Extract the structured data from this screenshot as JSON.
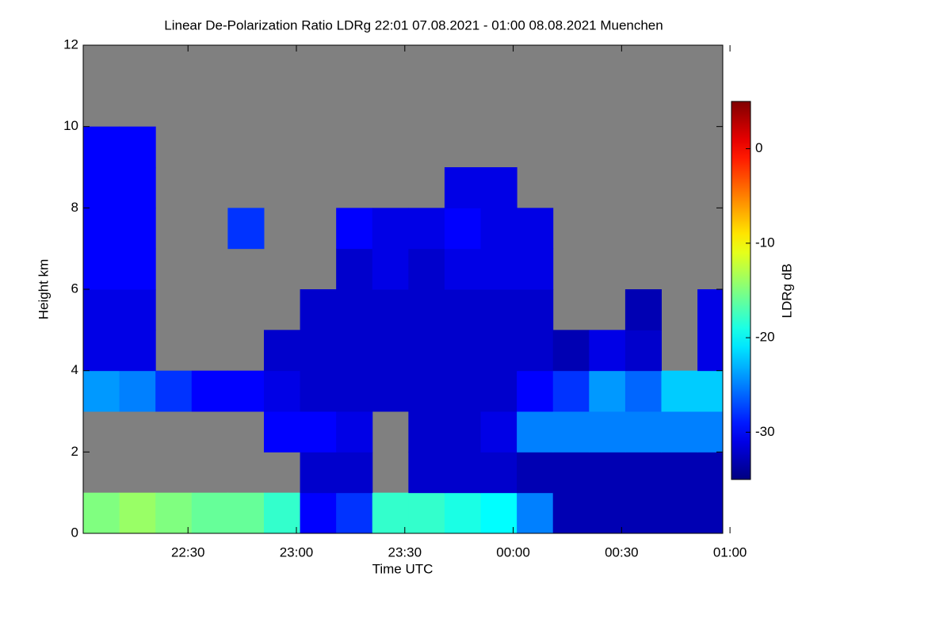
{
  "chart_data": {
    "type": "heatmap",
    "title": "Linear De-Polarization Ratio LDRg   22:01 07.08.2021 - 01:00 08.08.2021 Muenchen",
    "xlabel": "Time UTC",
    "ylabel": "Height km",
    "colorbar_label": "LDRg dB",
    "xlim": [
      1,
      178
    ],
    "ylim": [
      0,
      12
    ],
    "xticks": [
      {
        "value": 30,
        "label": "22:30"
      },
      {
        "value": 60,
        "label": "23:00"
      },
      {
        "value": 90,
        "label": "23:30"
      },
      {
        "value": 120,
        "label": "00:00"
      },
      {
        "value": 150,
        "label": "00:30"
      },
      {
        "value": 180,
        "label": "01:00"
      }
    ],
    "yticks": [
      0,
      2,
      4,
      6,
      8,
      10,
      12
    ],
    "clim": [
      -35,
      5
    ],
    "cticks": [
      0,
      -10,
      -20,
      -30
    ],
    "nan_color": "#808080",
    "colormap": "jet",
    "xbins": [
      1,
      11,
      21,
      31,
      41,
      51,
      61,
      71,
      81,
      91,
      101,
      111,
      121,
      131,
      141,
      151,
      161,
      171,
      178
    ],
    "ybins": [
      0,
      1,
      2,
      3,
      4,
      5,
      6,
      7,
      8,
      9,
      10,
      11,
      12
    ],
    "values": [
      [
        -15,
        -14,
        -15,
        -16,
        -16,
        -18,
        -30,
        -28,
        -18,
        -18,
        -19,
        -20,
        -25,
        -33,
        -33,
        -33,
        -33,
        -33
      ],
      [
        null,
        null,
        null,
        null,
        null,
        null,
        -32,
        -32,
        null,
        -32,
        -32,
        -32,
        -33,
        -33,
        -33,
        -33,
        -33,
        -33
      ],
      [
        null,
        null,
        null,
        null,
        null,
        -30,
        -30,
        -31,
        null,
        -32,
        -32,
        -31,
        -25,
        -25,
        -25,
        -25,
        -25,
        -25
      ],
      [
        -24,
        -25,
        -28,
        -30,
        -30,
        -31,
        -32,
        -32,
        -32,
        -32,
        -32,
        -32,
        -30,
        -28,
        -24,
        -26,
        -22,
        -22
      ],
      [
        -31,
        -31,
        null,
        null,
        null,
        -32,
        -32,
        -32,
        -32,
        -32,
        -32,
        -32,
        -32,
        -33,
        -31,
        -32,
        null,
        -31
      ],
      [
        -31,
        -31,
        null,
        null,
        null,
        null,
        -32,
        -32,
        -32,
        -32,
        -32,
        -32,
        -32,
        null,
        null,
        -33,
        null,
        -31
      ],
      [
        -30,
        -30,
        null,
        null,
        null,
        null,
        null,
        -32,
        -31,
        -32,
        -31,
        -31,
        -31,
        null,
        null,
        null,
        null,
        null
      ],
      [
        -30,
        -30,
        null,
        null,
        -28,
        null,
        null,
        -30,
        -31,
        -31,
        -30,
        -31,
        -31,
        null,
        null,
        null,
        null,
        null
      ],
      [
        -30,
        -30,
        null,
        null,
        null,
        null,
        null,
        null,
        null,
        null,
        -31,
        -31,
        null,
        null,
        null,
        null,
        null,
        null
      ],
      [
        -30,
        -30,
        null,
        null,
        null,
        null,
        null,
        null,
        null,
        null,
        null,
        null,
        null,
        null,
        null,
        null,
        null,
        null
      ],
      [
        null,
        null,
        null,
        null,
        null,
        null,
        null,
        null,
        null,
        null,
        null,
        null,
        null,
        null,
        null,
        null,
        null,
        null
      ],
      [
        null,
        null,
        null,
        null,
        null,
        null,
        null,
        null,
        null,
        null,
        null,
        null,
        null,
        null,
        null,
        null,
        null,
        null
      ]
    ]
  }
}
